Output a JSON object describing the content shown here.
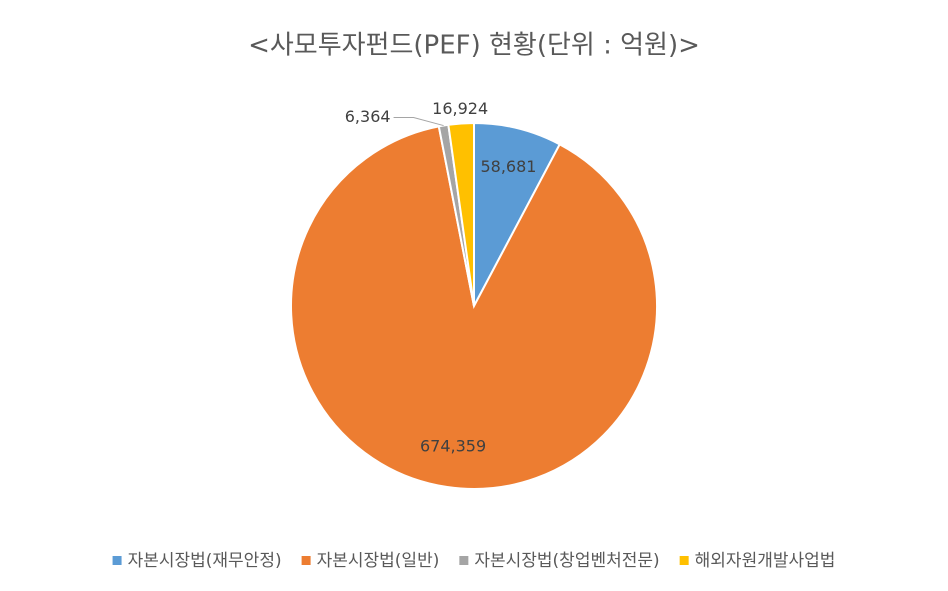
{
  "chart_data": {
    "type": "pie",
    "title": "<사모투자펀드(PEF) 현황(단위 : 억원)>",
    "categories": [
      "자본시장법(재무안정)",
      "자본시장법(일반)",
      "자본시장법(창업벤처전문)",
      "해외자원개발사업법"
    ],
    "values": [
      58681,
      674359,
      6364,
      16924
    ],
    "value_labels": [
      "58,681",
      "674,359",
      "6,364",
      "16,924"
    ],
    "colors": [
      "#5b9bd5",
      "#ed7d31",
      "#a5a5a5",
      "#ffc000"
    ],
    "legend": "bottom"
  }
}
